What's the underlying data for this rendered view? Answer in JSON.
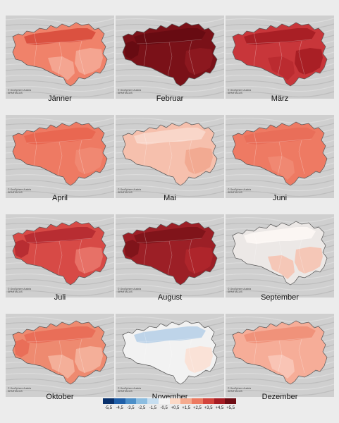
{
  "credit_lines": [
    "© GeoSphere Austria",
    "SPARTACUS"
  ],
  "maps": [
    {
      "month": "Jänner",
      "base": "#f0826a",
      "accent": "#d84b3c",
      "low": "#f4a896",
      "variant": "jan"
    },
    {
      "month": "Februar",
      "base": "#7a1118",
      "accent": "#660b12",
      "low": "#8e1a20",
      "variant": "feb"
    },
    {
      "month": "März",
      "base": "#c8363a",
      "accent": "#a51d24",
      "low": "#b92a30",
      "variant": "mar"
    },
    {
      "month": "April",
      "base": "#ee7a63",
      "accent": "#e8654f",
      "low": "#f08a73",
      "variant": "apr"
    },
    {
      "month": "Mai",
      "base": "#f6c0ad",
      "accent": "#f2a78f",
      "low": "#fad8cc",
      "variant": "mai"
    },
    {
      "month": "Juni",
      "base": "#ee7a63",
      "accent": "#e86d58",
      "low": "#f08a73",
      "variant": "jun"
    },
    {
      "month": "Juli",
      "base": "#d74a46",
      "accent": "#b52a30",
      "low": "#e9766a",
      "variant": "jul"
    },
    {
      "month": "August",
      "base": "#9c1f26",
      "accent": "#7d131a",
      "low": "#b0262c",
      "variant": "aug"
    },
    {
      "month": "September",
      "base": "#ece8e6",
      "accent": "#f6c3b1",
      "low": "#fdf7f4",
      "variant": "sep"
    },
    {
      "month": "Oktober",
      "base": "#ee8a70",
      "accent": "#e86a55",
      "low": "#f4b29d",
      "variant": "okt"
    },
    {
      "month": "November",
      "base": "#f2f2f2",
      "accent": "#fbe0d4",
      "low": "#b8d0e8",
      "variant": "nov"
    },
    {
      "month": "Dezember",
      "base": "#f6ad98",
      "accent": "#f08f77",
      "low": "#f9c7b8",
      "variant": "dez"
    }
  ],
  "legend": {
    "colors": [
      "#08306b",
      "#1f5fa8",
      "#4c8fc8",
      "#8cbde0",
      "#c6def0",
      "#f3f3f3",
      "#fcd9c6",
      "#f5ab8f",
      "#ec7a61",
      "#d2443c",
      "#a61c23",
      "#6e0d14"
    ],
    "tick_labels": [
      "-5,5",
      "-4,5",
      "-3,5",
      "-2,5",
      "-1,5",
      "-0,5",
      "+0,5",
      "+1,5",
      "+2,5",
      "+3,5",
      "+4,5",
      "+5,5"
    ]
  }
}
